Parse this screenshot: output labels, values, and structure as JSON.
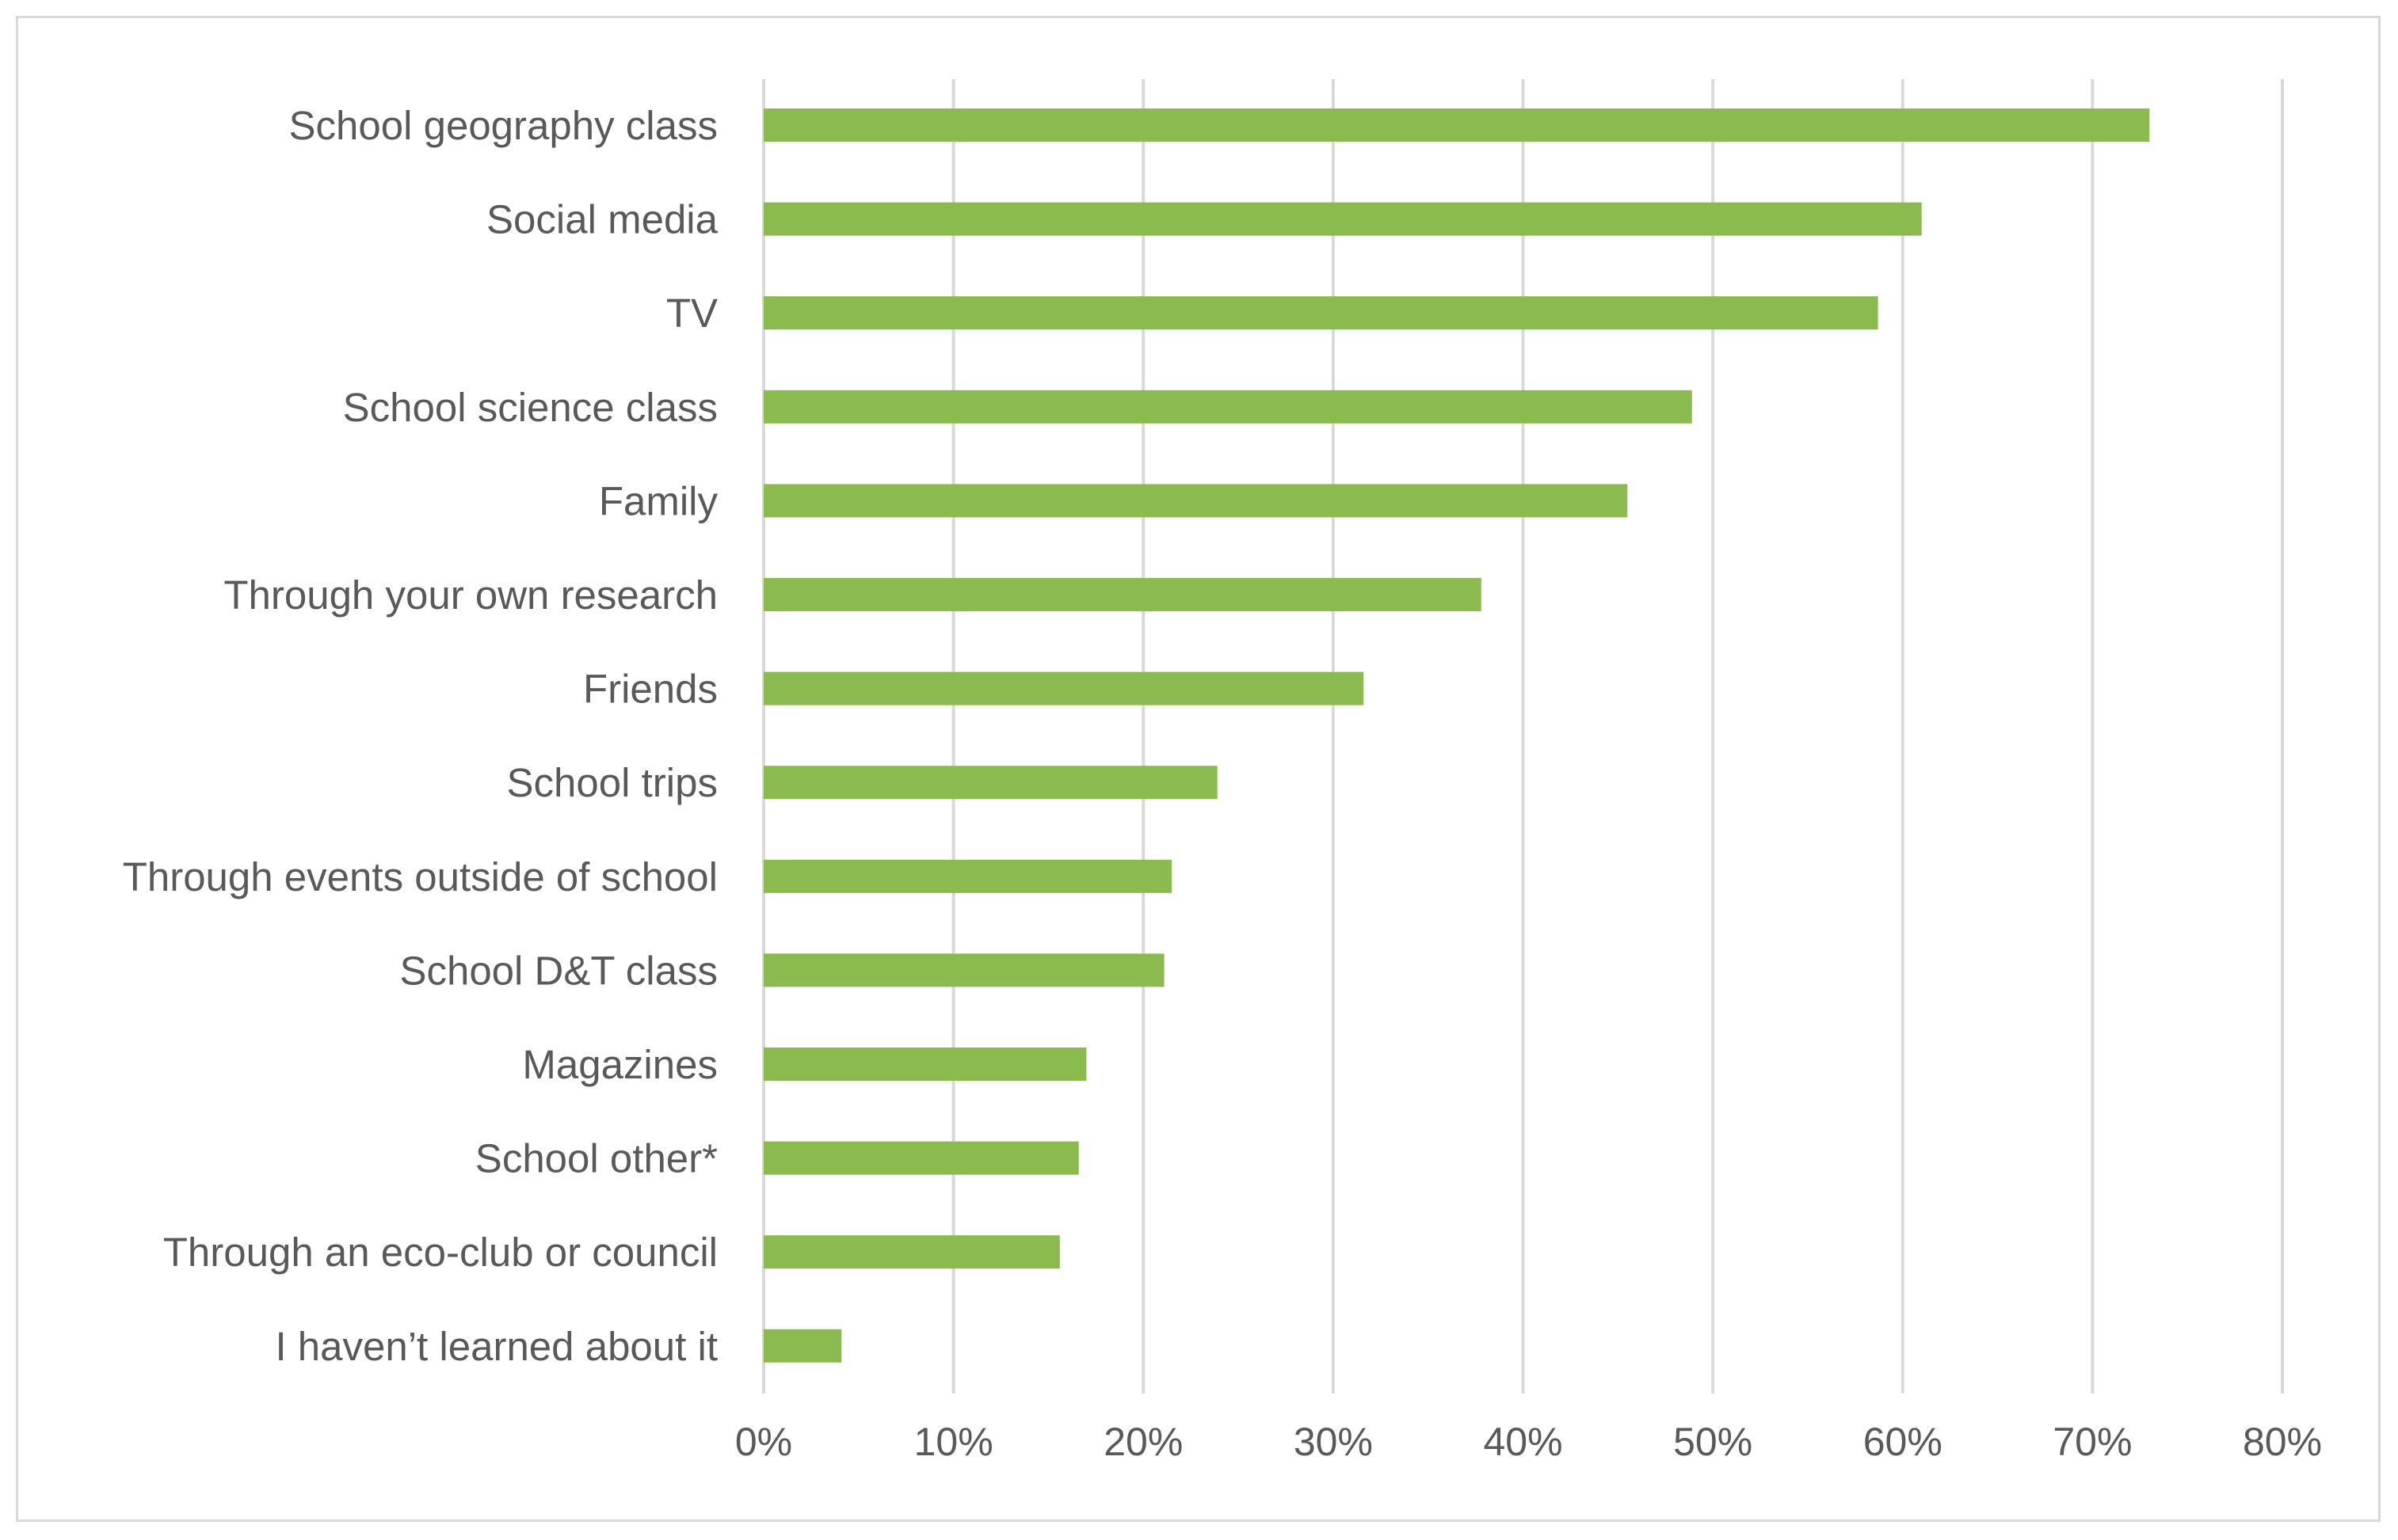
{
  "chart_data": {
    "type": "bar",
    "orientation": "horizontal",
    "categories": [
      "School geography class",
      "Social media",
      "TV",
      "School science class",
      "Family",
      "Through your own research",
      "Friends",
      "School trips",
      "Through events outside of school",
      "School D&T class",
      "Magazines",
      "School other*",
      "Through an eco-club or council",
      "I haven’t learned about it"
    ],
    "values": [
      73,
      61,
      58.7,
      48.9,
      45.5,
      37.8,
      31.6,
      23.9,
      21.5,
      21.1,
      17,
      16.6,
      15.6,
      4.1
    ],
    "xlim": [
      0,
      80
    ],
    "xticks": [
      "0%",
      "10%",
      "20%",
      "30%",
      "40%",
      "50%",
      "60%",
      "70%",
      "80%"
    ],
    "grid": true,
    "bar_color": "#8bbb4f",
    "grid_color": "#d9d9d9",
    "title": "",
    "xlabel": "",
    "ylabel": ""
  }
}
